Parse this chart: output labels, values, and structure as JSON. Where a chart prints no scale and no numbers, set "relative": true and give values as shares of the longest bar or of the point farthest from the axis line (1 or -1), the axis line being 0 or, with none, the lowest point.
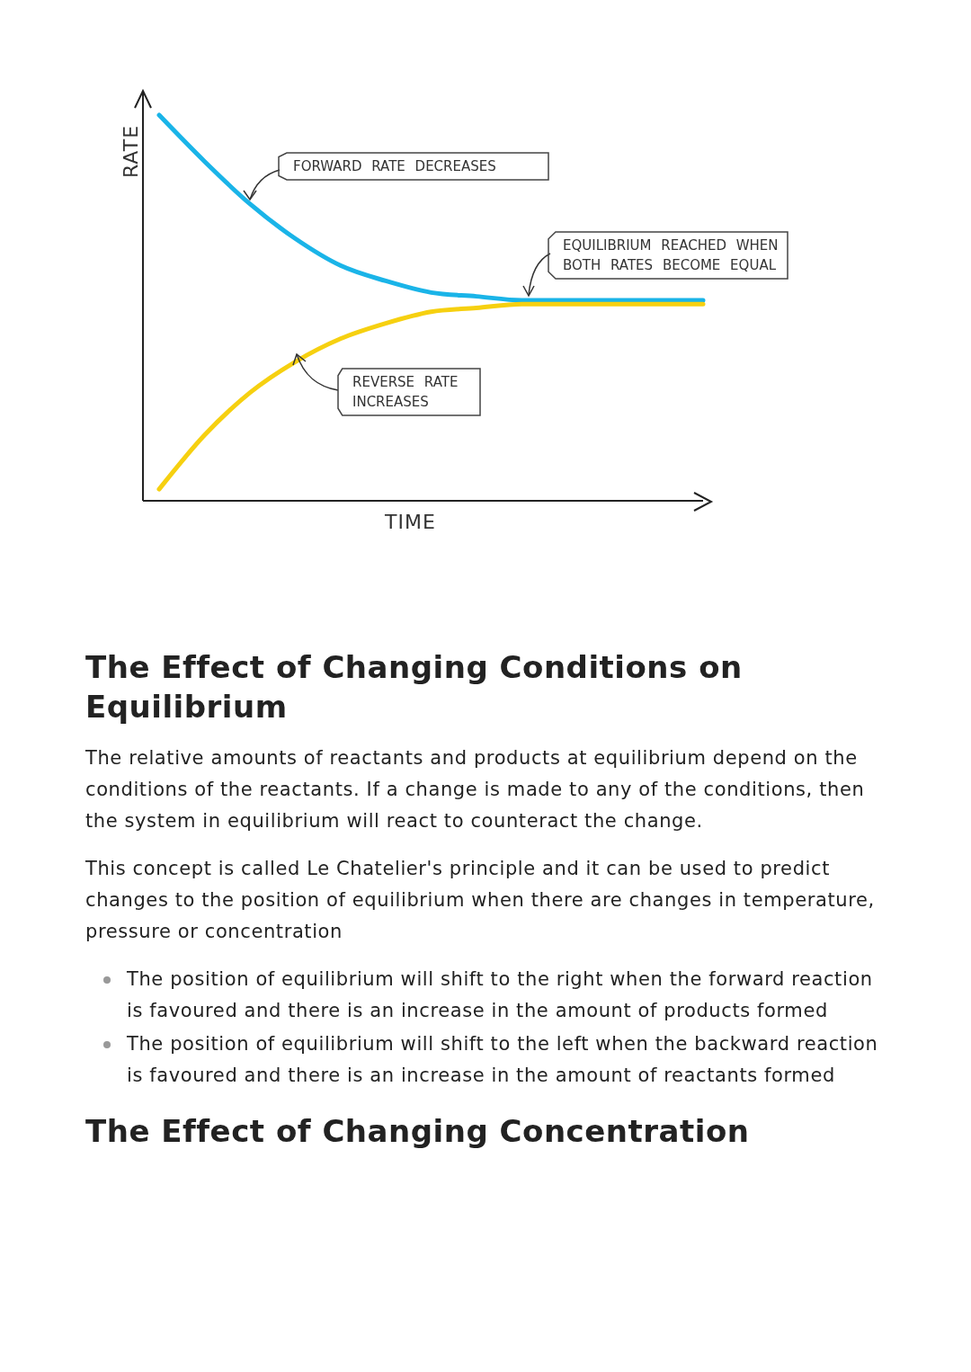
{
  "chart_data": {
    "type": "line",
    "relative": true,
    "xlabel": "TIME",
    "ylabel": "RATE",
    "grid": false,
    "legend": false,
    "marker": "none",
    "line_style": "solid",
    "categories": [
      null,
      null,
      null,
      null,
      null,
      null,
      null,
      null,
      null,
      null,
      null,
      null,
      null
    ],
    "series": [
      {
        "color": "#1ab4e8",
        "values": [
          1,
          0.88,
          0.77,
          0.68,
          0.61,
          0.57,
          0.54,
          0.53,
          0.52,
          0.52,
          0.52,
          0.52,
          0.52
        ]
      },
      {
        "color": "#f6d010",
        "values": [
          0.03,
          0.17,
          0.28,
          0.36,
          0.42,
          0.46,
          0.49,
          0.5,
          0.51,
          0.51,
          0.51,
          0.51,
          0.51
        ]
      }
    ],
    "annotations": [
      "FORWARD RATE DECREASES",
      "EQUILIBRIUM REACHED WHEN BOTH RATES BECOME EQUAL",
      "REVERSE RATE INCREASES",
      "The Effect of Changing Conditions on Equilibrium",
      "The relative amounts of reactants and products at equilibrium depend on the conditions of the reactants. If a change is made to any of the conditions, then the system in equilibrium will react to counteract the change.",
      "This concept is called Le Chatelier's principle and it can be used to predict changes to the position of equilibrium when there are changes in temperature, pressure or concentration",
      "The position of equilibrium will shift to the right when the forward reaction is favoured and there is an increase in the amount of products formed",
      "The position of equilibrium will shift to the left when the backward reaction is favoured and there is an increase in the amount of reactants formed",
      "The Effect of Changing Concentration"
    ]
  }
}
